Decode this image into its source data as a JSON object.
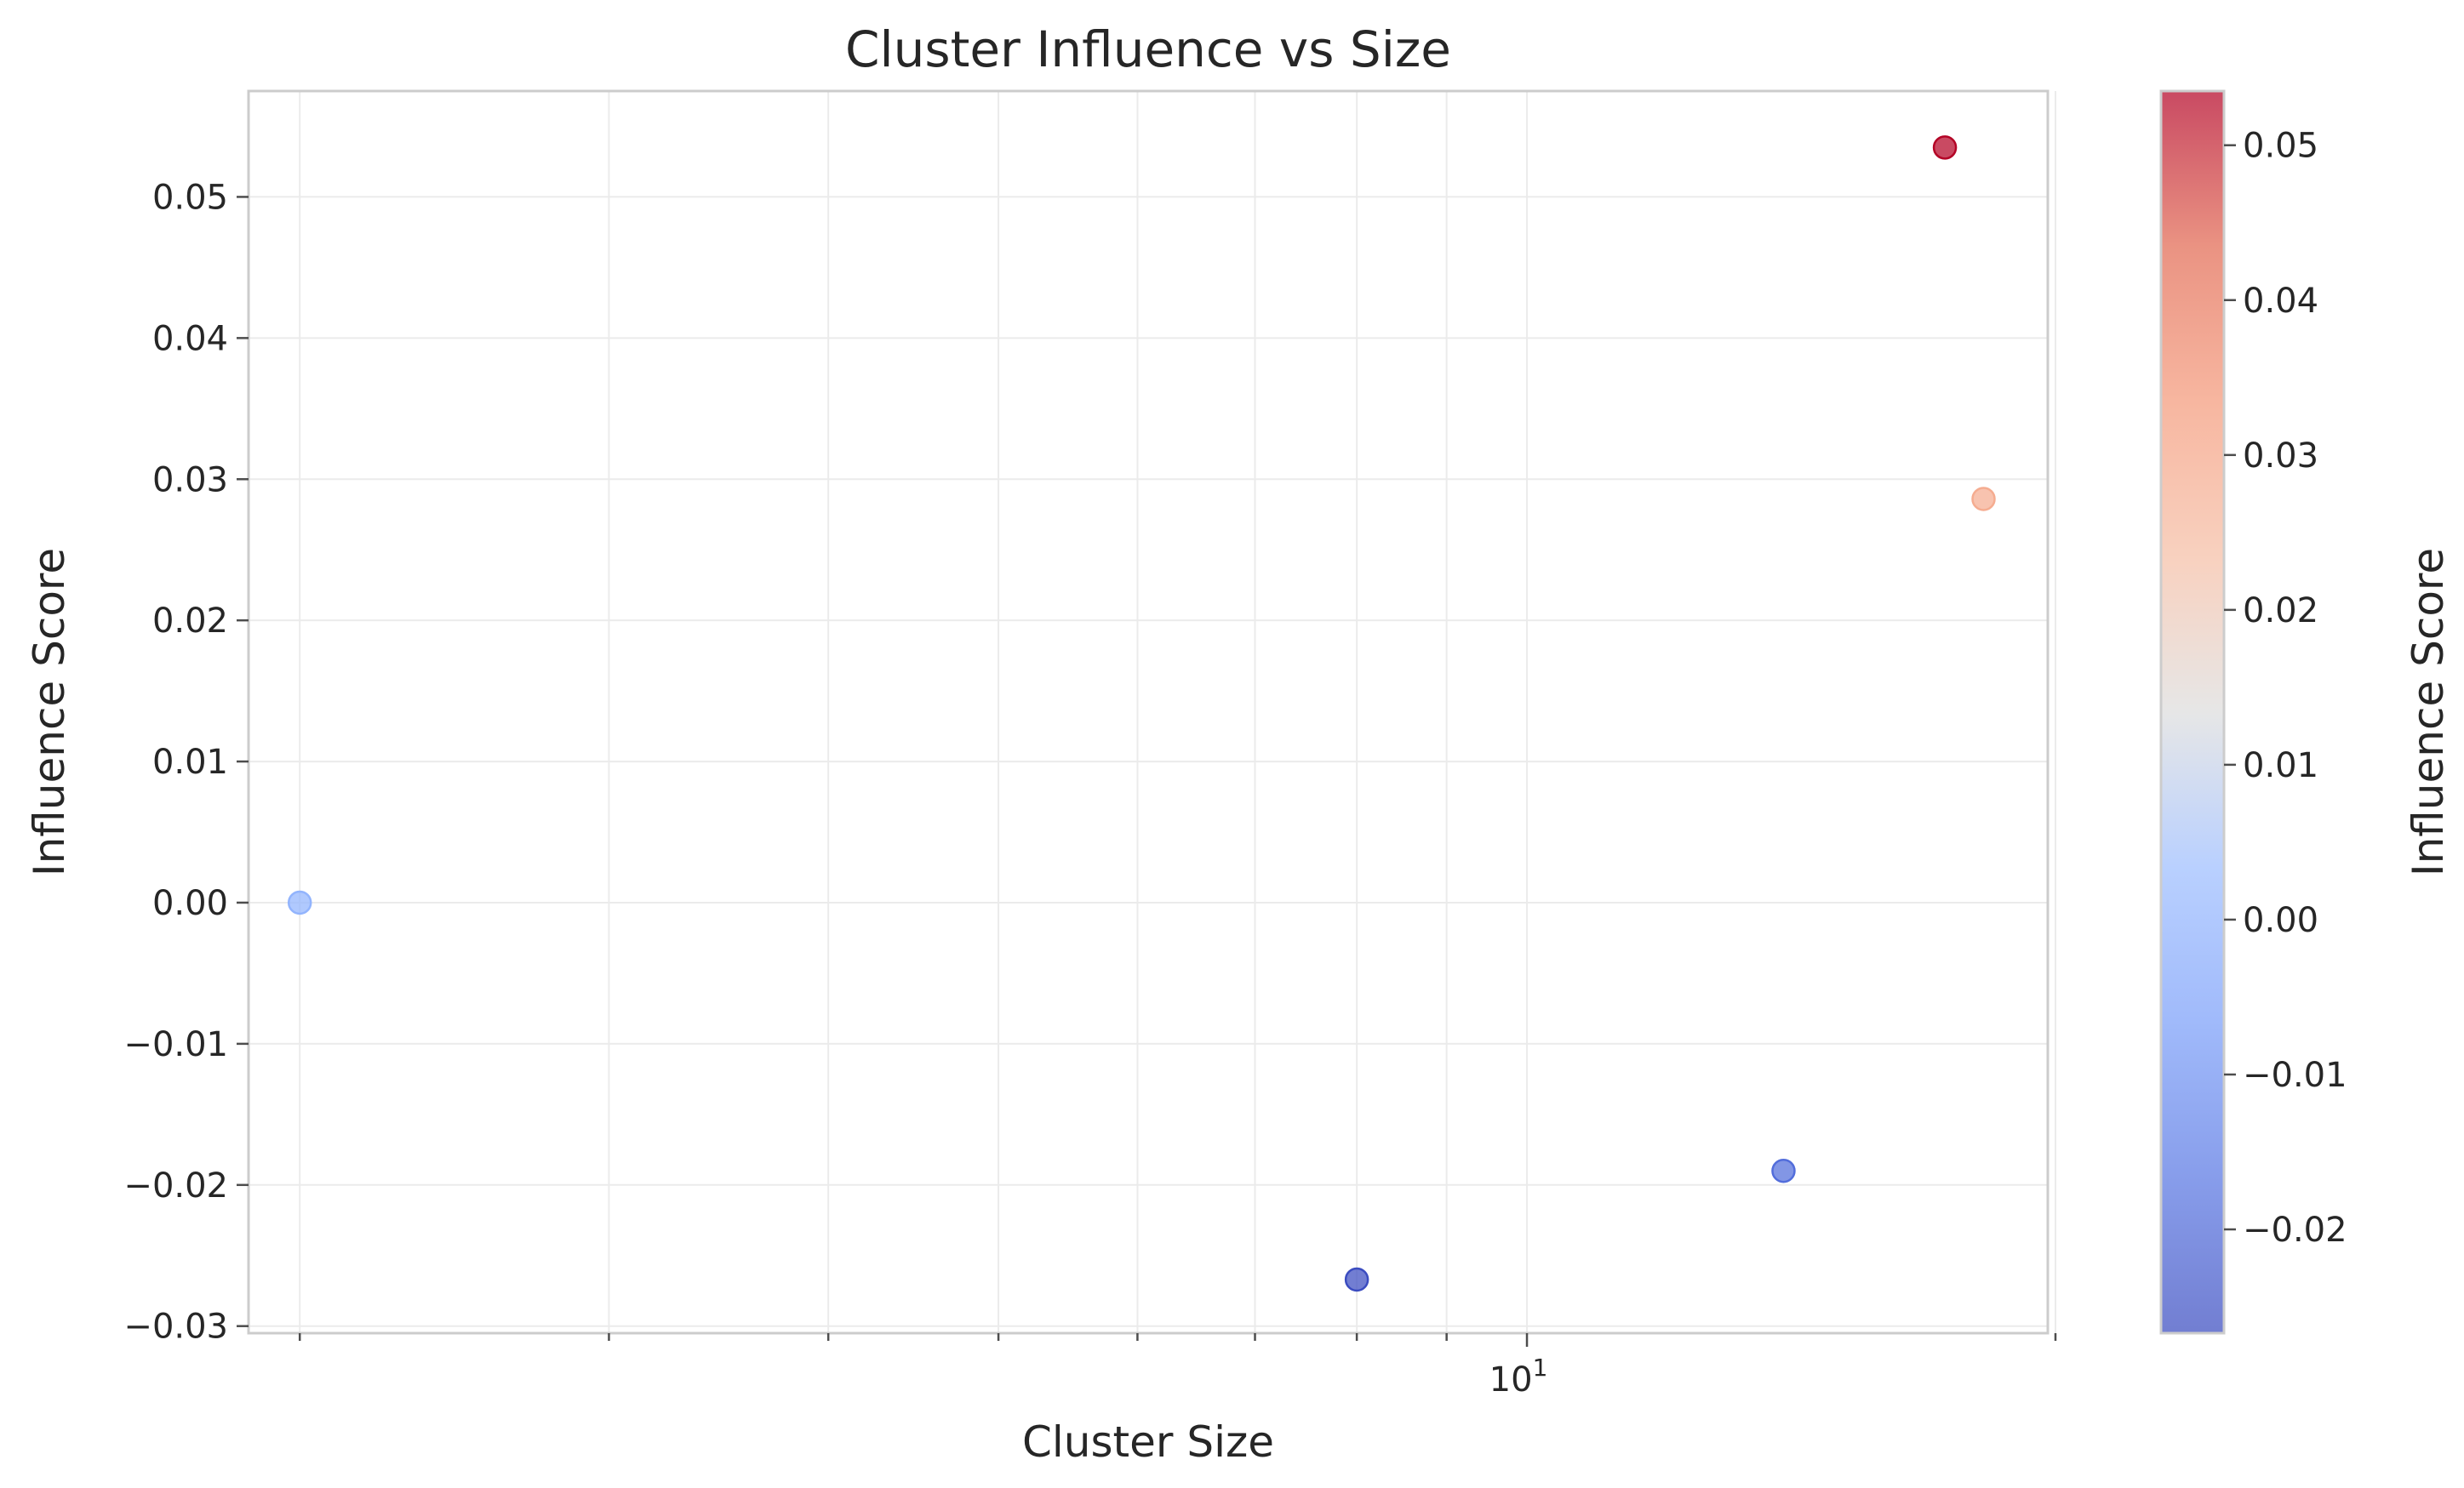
{
  "chart_data": {
    "type": "scatter",
    "title": "Cluster Influence vs Size",
    "xlabel": "Cluster Size",
    "ylabel": "Influence Score",
    "xscale": "log",
    "xlim": [
      1.87,
      19.8
    ],
    "ylim": [
      -0.0305,
      0.0575
    ],
    "x_major_ticks": [
      {
        "value": 10,
        "label": "10",
        "sup": "1"
      }
    ],
    "x_minor_ticks": [
      2,
      3,
      4,
      5,
      6,
      7,
      8,
      9,
      20
    ],
    "y_ticks": [
      -0.03,
      -0.02,
      -0.01,
      0.0,
      0.01,
      0.02,
      0.03,
      0.04,
      0.05
    ],
    "y_tick_labels": [
      "−0.03",
      "−0.02",
      "−0.01",
      "0.00",
      "0.01",
      "0.02",
      "0.03",
      "0.04",
      "0.05"
    ],
    "grid": true,
    "points": [
      {
        "x": 2,
        "y": 0.0
      },
      {
        "x": 8,
        "y": -0.0267
      },
      {
        "x": 14,
        "y": -0.019
      },
      {
        "x": 17.3,
        "y": 0.0535
      },
      {
        "x": 18.2,
        "y": 0.0286
      }
    ],
    "colorbar": {
      "label": "Influence Score",
      "colormap": "coolwarm",
      "vmin": -0.0267,
      "vmax": 0.0535,
      "ticks": [
        -0.02,
        -0.01,
        0.0,
        0.01,
        0.02,
        0.03,
        0.04,
        0.05
      ],
      "tick_labels": [
        "−0.02",
        "−0.01",
        "0.00",
        "0.01",
        "0.02",
        "0.03",
        "0.04",
        "0.05"
      ]
    }
  }
}
